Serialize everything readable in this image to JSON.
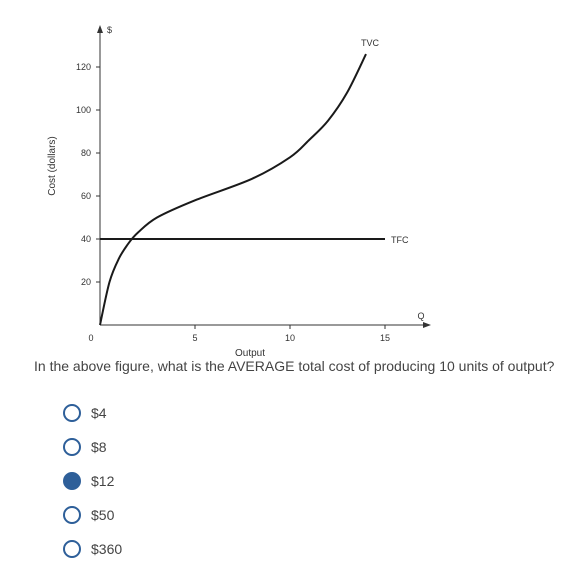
{
  "chart_data": {
    "type": "line",
    "y_unit_label": "$",
    "ylabel": "Cost (dollars)",
    "xlabel": "Output",
    "x_end_label": "Q",
    "xlim": [
      0,
      17
    ],
    "ylim": [
      0,
      130
    ],
    "x_ticks": [
      0,
      5,
      10,
      15
    ],
    "x_tick_labels": [
      "0",
      "5",
      "10",
      "15"
    ],
    "y_ticks": [
      20,
      40,
      60,
      80,
      100,
      120
    ],
    "y_tick_labels": [
      "20",
      "40",
      "60",
      "80",
      "100",
      "120"
    ],
    "series": [
      {
        "name": "TVC",
        "x": [
          0,
          0.5,
          1,
          1.5,
          2,
          3,
          5,
          8,
          10,
          11,
          12,
          13,
          14
        ],
        "y": [
          0,
          20,
          31,
          38,
          43,
          50,
          58,
          68,
          78,
          86,
          95,
          108,
          126
        ]
      },
      {
        "name": "TFC",
        "x": [
          0,
          15
        ],
        "y": [
          40,
          40
        ]
      }
    ]
  },
  "question": {
    "text": "In the above figure, what is the AVERAGE total cost of producing 10 units of output?",
    "options": [
      {
        "label": "$4",
        "selected": false
      },
      {
        "label": "$8",
        "selected": false
      },
      {
        "label": "$12",
        "selected": true
      },
      {
        "label": "$50",
        "selected": false
      },
      {
        "label": "$360",
        "selected": false
      }
    ]
  }
}
